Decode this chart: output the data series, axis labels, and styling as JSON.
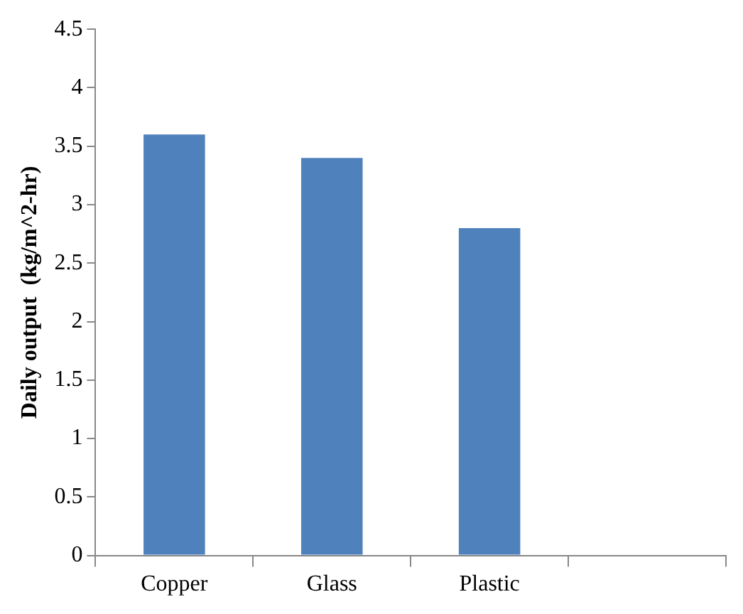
{
  "chart_data": {
    "type": "bar",
    "categories": [
      "Copper",
      "Glass",
      "Plastic",
      null
    ],
    "values": [
      3.6,
      3.4,
      2.8,
      null
    ],
    "color": "#4f81bd",
    "ylabel": "Daily output  (kg/m^2-hr)",
    "ylim": [
      0,
      4.5
    ],
    "yticks": [
      0,
      0.5,
      1,
      1.5,
      2,
      2.5,
      3,
      3.5,
      4,
      4.5
    ],
    "grid": false,
    "legend": false
  }
}
